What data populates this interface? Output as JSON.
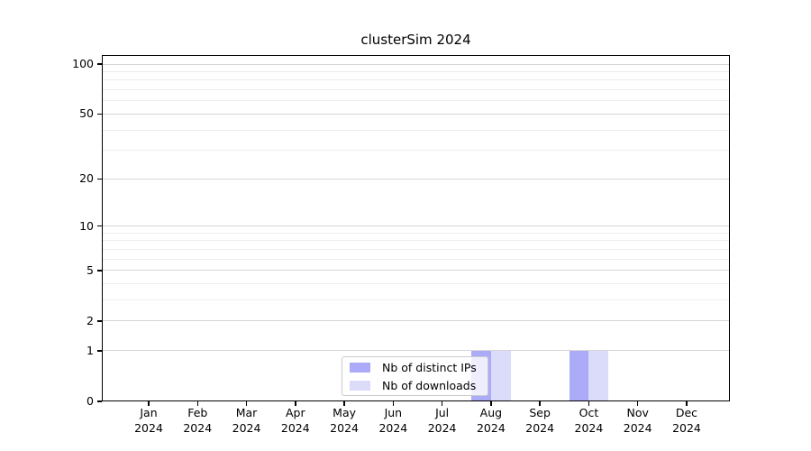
{
  "chart_data": {
    "type": "bar",
    "title": "clusterSim 2024",
    "categories": [
      "Jan",
      "Feb",
      "Mar",
      "Apr",
      "May",
      "Jun",
      "Jul",
      "Aug",
      "Sep",
      "Oct",
      "Nov",
      "Dec"
    ],
    "category_year": "2024",
    "series": [
      {
        "name": "Nb of distinct IPs",
        "color": "#ababf8",
        "values": [
          0,
          0,
          0,
          0,
          0,
          0,
          0,
          1,
          0,
          1,
          0,
          0
        ]
      },
      {
        "name": "Nb of downloads",
        "color": "#dbdbfa",
        "values": [
          0,
          0,
          0,
          0,
          0,
          0,
          0,
          1,
          0,
          1,
          0,
          0
        ]
      }
    ],
    "y_axis": {
      "scale": "log1p",
      "min": 0,
      "max": 100,
      "major_ticks": [
        0,
        1,
        2,
        5,
        10,
        20,
        50,
        100
      ],
      "minor_ticks": [
        3,
        4,
        6,
        7,
        8,
        9,
        30,
        40,
        60,
        70,
        80,
        90
      ]
    },
    "x_axis": {
      "label_line2": "2024"
    },
    "grid": "horizontal",
    "legend_position": "inside lower center"
  },
  "colors": {
    "grid_major": "#d6d6d6",
    "grid_minor": "#ededed",
    "axis": "#000000"
  }
}
